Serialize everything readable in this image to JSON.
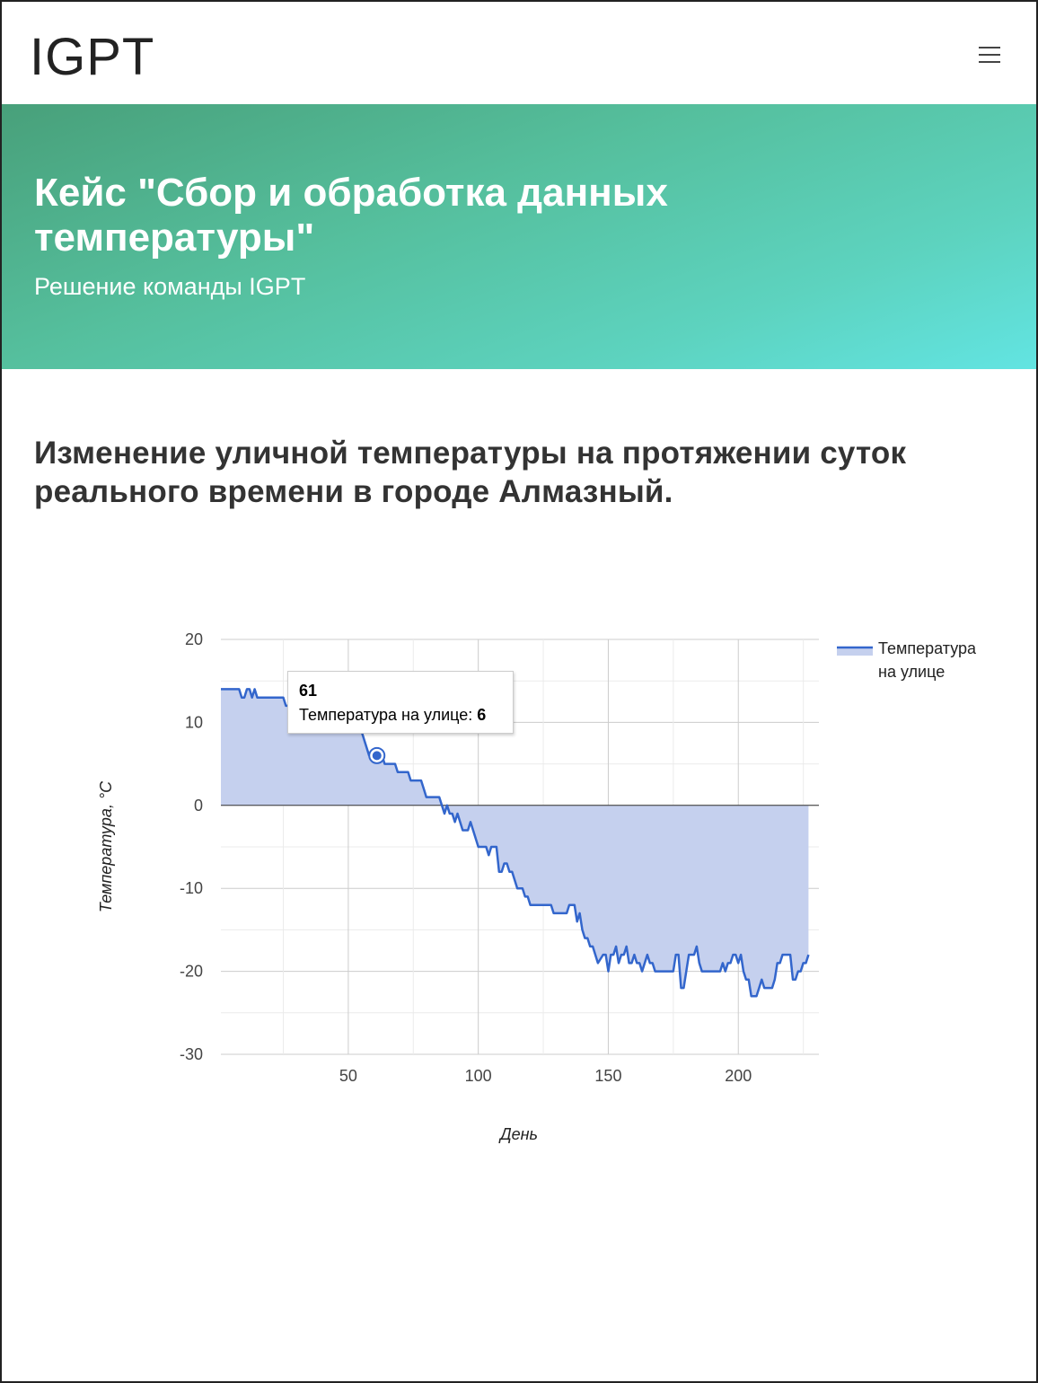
{
  "navbar": {
    "brand": "IGPT",
    "menu_icon": "hamburger-icon"
  },
  "hero": {
    "title": "Кейс \"Сбор и обработка данных температуры\"",
    "subtitle": "Решение команды IGPT",
    "gradient_colors": [
      "#48a07a",
      "#62e4e2"
    ]
  },
  "section": {
    "title": "Изменение уличной температуры на протяжении суток реального времени в городе Алмазный."
  },
  "tooltip": {
    "x_label": "61",
    "series_label": "Температура на улице:",
    "value": "6"
  },
  "chart_data": {
    "type": "area",
    "title": "",
    "xlabel": "День",
    "ylabel": "Температура, °C",
    "xlim": [
      1,
      231
    ],
    "ylim": [
      -30,
      20
    ],
    "x_ticks": [
      50,
      100,
      150,
      200
    ],
    "y_ticks": [
      20,
      10,
      0,
      -10,
      -20,
      -30
    ],
    "grid": true,
    "legend_position": "right",
    "series": [
      {
        "name": "Температура на улице",
        "color": "#3366cc",
        "fill_color": "#c5d0ee",
        "points": [
          [
            1,
            14
          ],
          [
            8,
            14
          ],
          [
            9,
            13
          ],
          [
            10,
            13
          ],
          [
            11,
            14
          ],
          [
            12,
            14
          ],
          [
            13,
            13
          ],
          [
            14,
            14
          ],
          [
            15,
            13
          ],
          [
            25,
            13
          ],
          [
            26,
            12
          ],
          [
            39,
            12
          ],
          [
            47,
            12
          ],
          [
            50,
            11
          ],
          [
            53,
            10
          ],
          [
            55,
            9
          ],
          [
            57,
            7
          ],
          [
            58,
            6
          ],
          [
            60,
            6
          ],
          [
            61,
            6
          ],
          [
            62,
            6
          ],
          [
            63,
            6
          ],
          [
            64,
            5
          ],
          [
            68,
            5
          ],
          [
            69,
            4
          ],
          [
            73,
            4
          ],
          [
            74,
            3
          ],
          [
            78,
            3
          ],
          [
            79,
            2
          ],
          [
            80,
            1
          ],
          [
            85,
            1
          ],
          [
            86,
            0
          ],
          [
            87,
            -1
          ],
          [
            88,
            0
          ],
          [
            89,
            -1
          ],
          [
            90,
            -1
          ],
          [
            91,
            -2
          ],
          [
            92,
            -1
          ],
          [
            93,
            -2
          ],
          [
            94,
            -3
          ],
          [
            96,
            -3
          ],
          [
            97,
            -2
          ],
          [
            98,
            -3
          ],
          [
            100,
            -5
          ],
          [
            103,
            -5
          ],
          [
            104,
            -6
          ],
          [
            105,
            -5
          ],
          [
            107,
            -5
          ],
          [
            108,
            -8
          ],
          [
            109,
            -8
          ],
          [
            110,
            -7
          ],
          [
            111,
            -7
          ],
          [
            112,
            -8
          ],
          [
            113,
            -8
          ],
          [
            115,
            -10
          ],
          [
            117,
            -10
          ],
          [
            118,
            -11
          ],
          [
            119,
            -11
          ],
          [
            120,
            -12
          ],
          [
            128,
            -12
          ],
          [
            129,
            -13
          ],
          [
            134,
            -13
          ],
          [
            135,
            -12
          ],
          [
            137,
            -12
          ],
          [
            138,
            -14
          ],
          [
            139,
            -13
          ],
          [
            140,
            -15
          ],
          [
            141,
            -16
          ],
          [
            142,
            -16
          ],
          [
            143,
            -17
          ],
          [
            144,
            -17
          ],
          [
            146,
            -19
          ],
          [
            148,
            -18
          ],
          [
            149,
            -18
          ],
          [
            150,
            -20
          ],
          [
            151,
            -18
          ],
          [
            152,
            -18
          ],
          [
            153,
            -17
          ],
          [
            154,
            -19
          ],
          [
            155,
            -18
          ],
          [
            156,
            -18
          ],
          [
            157,
            -17
          ],
          [
            158,
            -19
          ],
          [
            159,
            -19
          ],
          [
            160,
            -18
          ],
          [
            161,
            -19
          ],
          [
            162,
            -19
          ],
          [
            163,
            -20
          ],
          [
            164,
            -19
          ],
          [
            165,
            -18
          ],
          [
            166,
            -19
          ],
          [
            167,
            -19
          ],
          [
            168,
            -20
          ],
          [
            175,
            -20
          ],
          [
            176,
            -18
          ],
          [
            177,
            -18
          ],
          [
            178,
            -22
          ],
          [
            179,
            -22
          ],
          [
            180,
            -20
          ],
          [
            181,
            -18
          ],
          [
            182,
            -18
          ],
          [
            183,
            -18
          ],
          [
            184,
            -17
          ],
          [
            185,
            -19
          ],
          [
            186,
            -20
          ],
          [
            193,
            -20
          ],
          [
            194,
            -19
          ],
          [
            195,
            -20
          ],
          [
            196,
            -19
          ],
          [
            197,
            -19
          ],
          [
            198,
            -18
          ],
          [
            199,
            -18
          ],
          [
            200,
            -19
          ],
          [
            201,
            -18
          ],
          [
            202,
            -20
          ],
          [
            203,
            -21
          ],
          [
            204,
            -21
          ],
          [
            205,
            -23
          ],
          [
            207,
            -23
          ],
          [
            208,
            -22
          ],
          [
            209,
            -21
          ],
          [
            210,
            -22
          ],
          [
            213,
            -22
          ],
          [
            214,
            -21
          ],
          [
            215,
            -19
          ],
          [
            216,
            -19
          ],
          [
            217,
            -18
          ],
          [
            218,
            -18
          ],
          [
            220,
            -18
          ],
          [
            221,
            -21
          ],
          [
            222,
            -21
          ],
          [
            223,
            -20
          ],
          [
            224,
            -20
          ],
          [
            225,
            -19
          ],
          [
            226,
            -19
          ],
          [
            227,
            -18
          ]
        ]
      }
    ],
    "highlight": {
      "x": 61,
      "y": 6
    }
  }
}
